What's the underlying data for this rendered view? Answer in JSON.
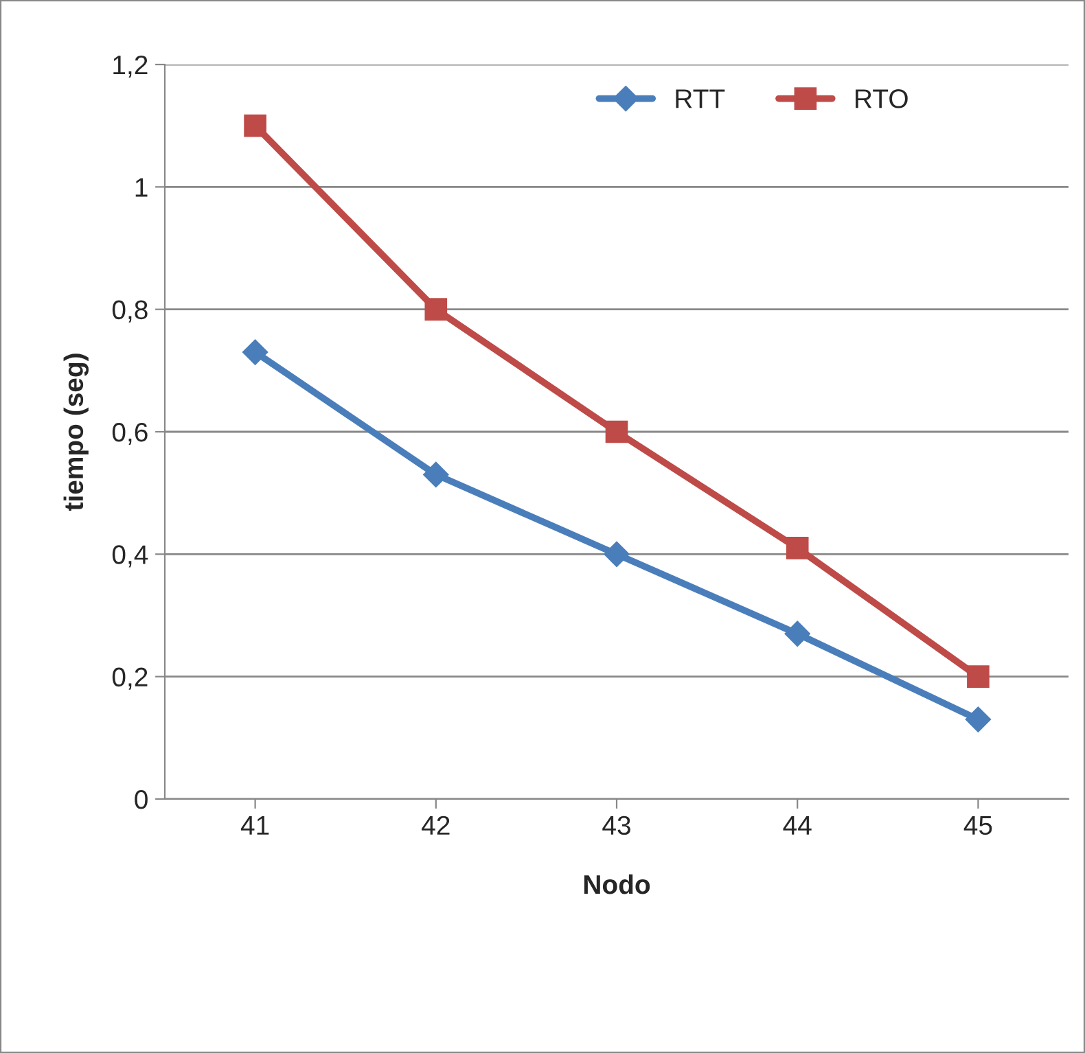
{
  "chart_data": {
    "type": "line",
    "xlabel": "Nodo",
    "ylabel": "tiempo (seg)",
    "categories": [
      "41",
      "42",
      "43",
      "44",
      "45"
    ],
    "series": [
      {
        "name": "RTT",
        "color": "#4a7ebb",
        "marker": "diamond",
        "values": [
          0.73,
          0.53,
          0.4,
          0.27,
          0.13
        ]
      },
      {
        "name": "RTO",
        "color": "#be4b48",
        "marker": "square",
        "values": [
          1.1,
          0.8,
          0.6,
          0.41,
          0.2
        ]
      }
    ],
    "ylim": [
      0,
      1.2
    ],
    "yticks": [
      "0",
      {
        "value": 0.2,
        "label": "0,2"
      },
      {
        "value": 0.4,
        "label": "0,4"
      },
      {
        "value": 0.6,
        "label": "0,6"
      },
      {
        "value": 0.8,
        "label": "0,8"
      },
      1,
      {
        "value": 1.2,
        "label": "1,2"
      }
    ],
    "grid": "y",
    "legend": "top right",
    "line_style": "solid"
  }
}
